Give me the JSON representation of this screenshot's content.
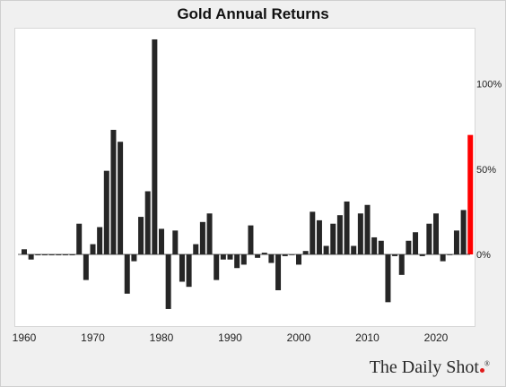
{
  "chart_data": {
    "type": "bar",
    "title": "Gold Annual Returns",
    "xlabel": "",
    "ylabel": "",
    "x_tick_labels": [
      "1960",
      "1970",
      "1980",
      "1990",
      "2000",
      "2010",
      "2020"
    ],
    "x_ticks": [
      1960,
      1970,
      1980,
      1990,
      2000,
      2010,
      2020
    ],
    "y_tick_labels": [
      "100%",
      "50%",
      "0%"
    ],
    "y_ticks": [
      100,
      50,
      0
    ],
    "ylim": [
      -33,
      128
    ],
    "xlim": [
      1960,
      2025
    ],
    "grid": false,
    "y_axis_side": "right",
    "bar_color": "#262626",
    "highlight_color": "#ff0000",
    "highlight_year": 2025,
    "x": [
      1960,
      1961,
      1962,
      1963,
      1964,
      1965,
      1966,
      1967,
      1968,
      1969,
      1970,
      1971,
      1972,
      1973,
      1974,
      1975,
      1976,
      1977,
      1978,
      1979,
      1980,
      1981,
      1982,
      1983,
      1984,
      1985,
      1986,
      1987,
      1988,
      1989,
      1990,
      1991,
      1992,
      1993,
      1994,
      1995,
      1996,
      1997,
      1998,
      1999,
      2000,
      2001,
      2002,
      2003,
      2004,
      2005,
      2006,
      2007,
      2008,
      2009,
      2010,
      2011,
      2012,
      2013,
      2014,
      2015,
      2016,
      2017,
      2018,
      2019,
      2020,
      2021,
      2022,
      2023,
      2024,
      2025
    ],
    "values": [
      3,
      -3,
      -0.5,
      -0.5,
      -0.5,
      -0.5,
      -0.5,
      -0.5,
      18,
      -15,
      6,
      16,
      49,
      73,
      66,
      -23,
      -4,
      22,
      37,
      126,
      15,
      -32,
      14,
      -16,
      -19,
      6,
      19,
      24,
      -15,
      -3,
      -3,
      -8,
      -6,
      17,
      -2,
      1,
      -5,
      -21,
      -1,
      0,
      -6,
      2,
      25,
      20,
      5,
      18,
      23,
      31,
      5,
      24,
      29,
      10,
      8,
      -28,
      -1,
      -12,
      8,
      13,
      -1,
      18,
      24,
      -4,
      0,
      14,
      26,
      70
    ]
  },
  "watermark": {
    "text": "The Daily Shot",
    "reg_mark": "®"
  }
}
